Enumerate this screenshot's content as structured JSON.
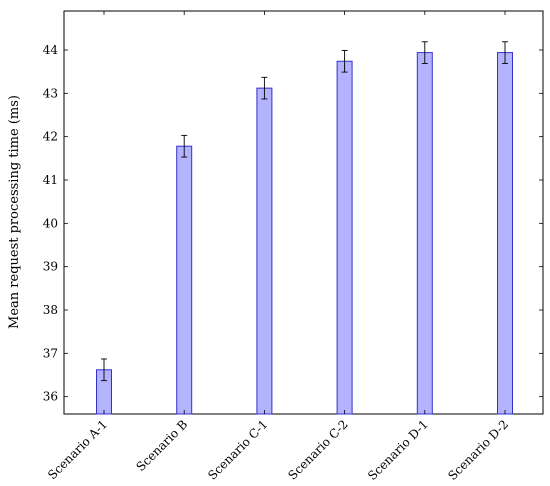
{
  "chart_data": {
    "type": "bar",
    "title": "",
    "xlabel": "",
    "ylabel": "Mean request processing time (ms)",
    "categories": [
      "Scenario A-1",
      "Scenario B",
      "Scenario C-1",
      "Scenario C-2",
      "Scenario D-1",
      "Scenario D-2"
    ],
    "values": [
      36.62,
      41.78,
      43.12,
      43.74,
      43.94,
      43.94
    ],
    "error": [
      0.25,
      0.25,
      0.25,
      0.25,
      0.25,
      0.25
    ],
    "ylim": [
      35.6,
      44.9
    ],
    "yticks": [
      36,
      37,
      38,
      39,
      40,
      41,
      42,
      43,
      44
    ],
    "grid": false,
    "legend": "none",
    "colors": {
      "bar_fill": "#b3b3ff",
      "bar_stroke": "#3333cc",
      "axis": "#000000"
    }
  }
}
